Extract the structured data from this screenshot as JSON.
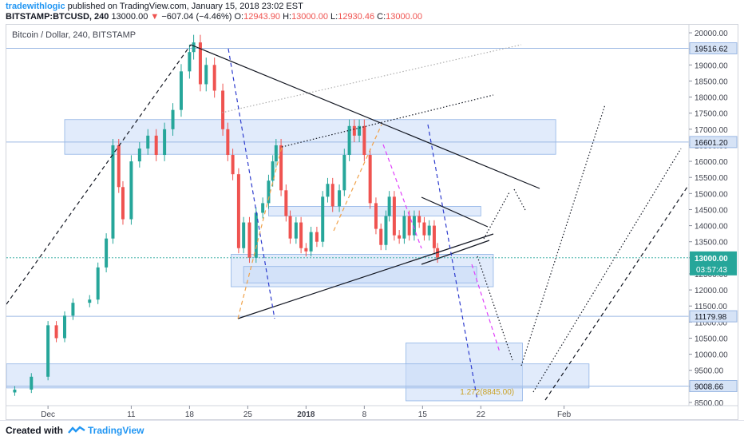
{
  "header": {
    "author": "tradewithlogic",
    "published_text": "published on TradingView.com, January 15, 2018 23:02 EST",
    "symbol": "BITSTAMP:BTCUSD, 240",
    "last_price": "13000.00",
    "change": "−607.04 (−4.46%)",
    "open_label": "O:",
    "open_value": "12943.90",
    "high_label": "H:",
    "high_value": "13000.00",
    "low_label": "L:",
    "low_value": "12930.46",
    "close_label": "C:",
    "close_value": "13000.00"
  },
  "chart_title": "Bitcoin / Dollar, 240, BITSTAMP",
  "footer": {
    "created_with": "Created with",
    "brand": "TradingView"
  },
  "chart_data": {
    "type": "candlestick",
    "title": "Bitcoin / Dollar, 240, BITSTAMP",
    "ylim": [
      8400,
      20250
    ],
    "y_ticks": [
      8500,
      9000,
      9500,
      10000,
      10500,
      11000,
      11500,
      12000,
      12500,
      13000,
      13500,
      14000,
      14500,
      15000,
      15500,
      16000,
      16500,
      17000,
      17500,
      18000,
      18500,
      19000,
      19500,
      20000
    ],
    "x_labels": [
      "Dec",
      "11",
      "18",
      "25",
      "2018",
      "8",
      "15",
      "22",
      "Feb"
    ],
    "x_label_days": [
      0,
      10,
      17,
      24,
      31,
      38,
      45,
      52,
      62
    ],
    "xlim_days": [
      -5,
      77
    ],
    "price_series": [
      [
        -4,
        8900
      ],
      [
        -2,
        9300
      ],
      [
        0,
        10900
      ],
      [
        1,
        10500
      ],
      [
        2,
        11200
      ],
      [
        3,
        11600
      ],
      [
        5,
        11700
      ],
      [
        6,
        12700
      ],
      [
        7,
        13600
      ],
      [
        7.8,
        16500
      ],
      [
        8.5,
        15200
      ],
      [
        9,
        14200
      ],
      [
        10,
        16000
      ],
      [
        11,
        16400
      ],
      [
        12,
        16800
      ],
      [
        13,
        16200
      ],
      [
        14,
        17000
      ],
      [
        15,
        17600
      ],
      [
        16,
        18800
      ],
      [
        17,
        19400
      ],
      [
        17.5,
        19700
      ],
      [
        18.3,
        18400
      ],
      [
        19,
        19000
      ],
      [
        20,
        18200
      ],
      [
        21,
        17000
      ],
      [
        21.6,
        16200
      ],
      [
        22.2,
        15600
      ],
      [
        22.9,
        13300
      ],
      [
        23.5,
        14100
      ],
      [
        24.2,
        13000
      ],
      [
        25,
        14400
      ],
      [
        25.8,
        14700
      ],
      [
        26.5,
        15400
      ],
      [
        27,
        16000
      ],
      [
        27.4,
        16500
      ],
      [
        28,
        15100
      ],
      [
        28.6,
        14300
      ],
      [
        29.1,
        13600
      ],
      [
        29.8,
        14100
      ],
      [
        30.4,
        13300
      ],
      [
        31,
        13200
      ],
      [
        31.6,
        13800
      ],
      [
        32.3,
        13500
      ],
      [
        33,
        14900
      ],
      [
        33.6,
        15300
      ],
      [
        34.2,
        14600
      ],
      [
        35,
        15100
      ],
      [
        35.6,
        16200
      ],
      [
        36.2,
        17100
      ],
      [
        36.8,
        16800
      ],
      [
        37.4,
        17100
      ],
      [
        38,
        16200
      ],
      [
        38.7,
        14700
      ],
      [
        39.4,
        13900
      ],
      [
        40,
        13400
      ],
      [
        40.6,
        14300
      ],
      [
        41,
        14900
      ],
      [
        41.6,
        13700
      ],
      [
        42.2,
        13600
      ],
      [
        42.8,
        14300
      ],
      [
        43.4,
        13700
      ],
      [
        44,
        14300
      ],
      [
        44.6,
        14100
      ],
      [
        45.2,
        13700
      ],
      [
        45.8,
        14000
      ],
      [
        46.4,
        13300
      ],
      [
        46.8,
        13000
      ]
    ],
    "zones": [
      {
        "from_day": 2,
        "to_day": 61,
        "low": 16220,
        "high": 17300
      },
      {
        "from_day": 26.5,
        "to_day": 52,
        "low": 14300,
        "high": 14600
      },
      {
        "from_day": 22,
        "to_day": 53.5,
        "low": 12100,
        "high": 13110
      },
      {
        "from_day": 23.5,
        "to_day": 51.5,
        "low": 12220,
        "high": 12730
      },
      {
        "from_day": 43,
        "to_day": 57,
        "low": 8550,
        "high": 10350
      },
      {
        "from_day": -5,
        "to_day": 65,
        "low": 8950,
        "high": 9700
      }
    ],
    "horizontal_levels": [
      {
        "label": "19516.62",
        "value": 19516.62
      },
      {
        "label": "16601.20",
        "value": 16601.2
      },
      {
        "label": "11179.98",
        "value": 11179.98
      },
      {
        "label": "9008.66",
        "value": 9008.66
      }
    ],
    "current_price": {
      "label": "13000.00",
      "value": 13000.0,
      "countdown": "03:57:43"
    },
    "fib_label": "1.272(8845.00)",
    "colors": {
      "up": "#26a69a",
      "down": "#ef5350",
      "zone": "#c8dbf7",
      "zone_border": "#8fb3e6",
      "level": "#9bb8e3",
      "level_tag": "#d6e3f6",
      "price_tag": "#26a69a",
      "trendline": "#131722",
      "blue_dash": "#2e3cce",
      "pink_dash": "#e040fb",
      "orange_dash": "#f0a24a"
    }
  }
}
